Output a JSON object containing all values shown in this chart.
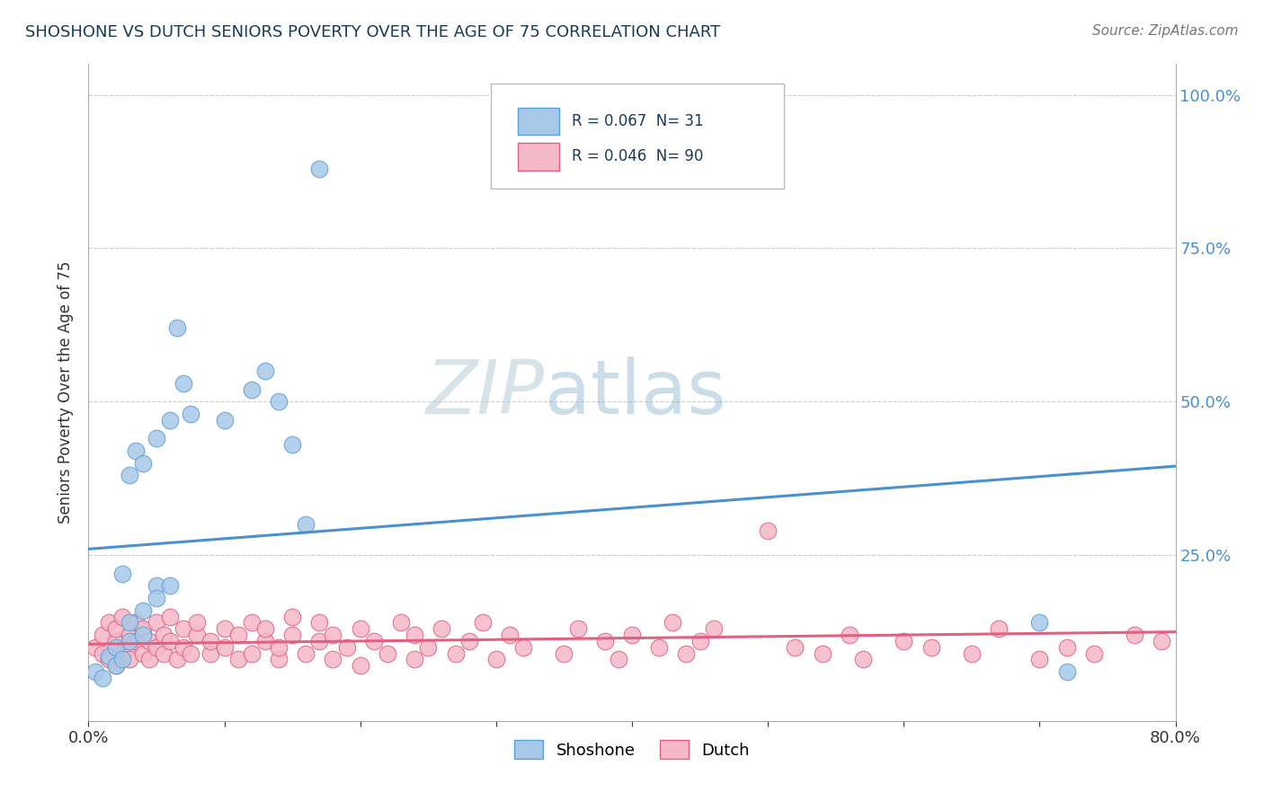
{
  "title": "SHOSHONE VS DUTCH SENIORS POVERTY OVER THE AGE OF 75 CORRELATION CHART",
  "source_text": "Source: ZipAtlas.com",
  "ylabel": "Seniors Poverty Over the Age of 75",
  "xlim": [
    0.0,
    0.8
  ],
  "ylim": [
    -0.02,
    1.05
  ],
  "shoshone_R": "0.067",
  "shoshone_N": "31",
  "dutch_R": "0.046",
  "dutch_N": "90",
  "shoshone_fill": "#a8c8e8",
  "shoshone_edge": "#5a9fd4",
  "dutch_fill": "#f5b8c8",
  "dutch_edge": "#e06080",
  "shoshone_line": "#4a8fd0",
  "dutch_line": "#e06080",
  "watermark_color": "#cddae8",
  "sh_x": [
    0.005,
    0.01,
    0.015,
    0.02,
    0.02,
    0.025,
    0.025,
    0.03,
    0.03,
    0.03,
    0.035,
    0.04,
    0.04,
    0.04,
    0.05,
    0.05,
    0.05,
    0.06,
    0.06,
    0.065,
    0.07,
    0.075,
    0.1,
    0.12,
    0.13,
    0.14,
    0.15,
    0.16,
    0.17,
    0.7,
    0.72
  ],
  "sh_y": [
    0.06,
    0.05,
    0.085,
    0.1,
    0.07,
    0.08,
    0.22,
    0.14,
    0.11,
    0.38,
    0.42,
    0.16,
    0.12,
    0.4,
    0.2,
    0.18,
    0.44,
    0.47,
    0.2,
    0.62,
    0.53,
    0.48,
    0.47,
    0.52,
    0.55,
    0.5,
    0.43,
    0.3,
    0.88,
    0.14,
    0.06
  ],
  "du_x": [
    0.005,
    0.01,
    0.01,
    0.015,
    0.015,
    0.02,
    0.02,
    0.02,
    0.025,
    0.025,
    0.03,
    0.03,
    0.03,
    0.035,
    0.035,
    0.04,
    0.04,
    0.045,
    0.045,
    0.05,
    0.05,
    0.055,
    0.055,
    0.06,
    0.06,
    0.065,
    0.07,
    0.07,
    0.075,
    0.08,
    0.08,
    0.09,
    0.09,
    0.1,
    0.1,
    0.11,
    0.11,
    0.12,
    0.12,
    0.13,
    0.13,
    0.14,
    0.14,
    0.15,
    0.15,
    0.16,
    0.17,
    0.17,
    0.18,
    0.18,
    0.19,
    0.2,
    0.2,
    0.21,
    0.22,
    0.23,
    0.24,
    0.24,
    0.25,
    0.26,
    0.27,
    0.28,
    0.29,
    0.3,
    0.31,
    0.32,
    0.35,
    0.36,
    0.38,
    0.39,
    0.4,
    0.42,
    0.43,
    0.44,
    0.45,
    0.46,
    0.5,
    0.52,
    0.54,
    0.56,
    0.57,
    0.6,
    0.62,
    0.65,
    0.67,
    0.7,
    0.72,
    0.74,
    0.77,
    0.79
  ],
  "du_y": [
    0.1,
    0.09,
    0.12,
    0.08,
    0.14,
    0.07,
    0.11,
    0.13,
    0.09,
    0.15,
    0.1,
    0.08,
    0.12,
    0.11,
    0.14,
    0.09,
    0.13,
    0.08,
    0.11,
    0.1,
    0.14,
    0.09,
    0.12,
    0.11,
    0.15,
    0.08,
    0.1,
    0.13,
    0.09,
    0.12,
    0.14,
    0.09,
    0.11,
    0.1,
    0.13,
    0.08,
    0.12,
    0.09,
    0.14,
    0.11,
    0.13,
    0.08,
    0.1,
    0.12,
    0.15,
    0.09,
    0.11,
    0.14,
    0.08,
    0.12,
    0.1,
    0.13,
    0.07,
    0.11,
    0.09,
    0.14,
    0.08,
    0.12,
    0.1,
    0.13,
    0.09,
    0.11,
    0.14,
    0.08,
    0.12,
    0.1,
    0.09,
    0.13,
    0.11,
    0.08,
    0.12,
    0.1,
    0.14,
    0.09,
    0.11,
    0.13,
    0.29,
    0.1,
    0.09,
    0.12,
    0.08,
    0.11,
    0.1,
    0.09,
    0.13,
    0.08,
    0.1,
    0.09,
    0.12,
    0.11
  ],
  "sh_trend_x0": 0.0,
  "sh_trend_y0": 0.26,
  "sh_trend_x1": 0.8,
  "sh_trend_y1": 0.395,
  "du_trend_x0": 0.0,
  "du_trend_y0": 0.105,
  "du_trend_x1": 0.8,
  "du_trend_y1": 0.125
}
